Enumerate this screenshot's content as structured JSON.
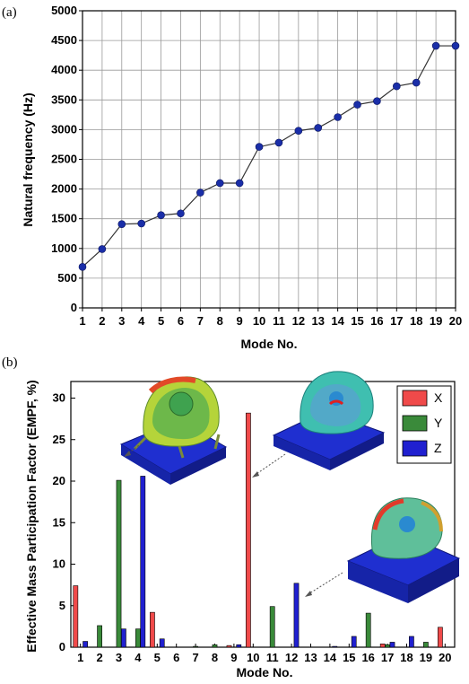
{
  "chart_data": [
    {
      "panel_label": "(a)",
      "type": "line",
      "x": [
        1,
        2,
        3,
        4,
        5,
        6,
        7,
        8,
        9,
        10,
        11,
        12,
        13,
        14,
        15,
        16,
        17,
        18,
        19,
        20
      ],
      "y": [
        690,
        990,
        1410,
        1420,
        1560,
        1590,
        1940,
        2100,
        2100,
        2710,
        2780,
        2980,
        3030,
        3210,
        3420,
        3480,
        3730,
        3790,
        4410,
        4410
      ],
      "xlabel": "Mode No.",
      "ylabel": "Natural frequency (Hz)",
      "xlim": [
        1,
        20
      ],
      "ylim": [
        0,
        5000
      ],
      "yticks": [
        0,
        500,
        1000,
        1500,
        2000,
        2500,
        3000,
        3500,
        4000,
        4500,
        5000
      ],
      "grid": true,
      "marker_color": "#1a2ea8"
    },
    {
      "panel_label": "(b)",
      "type": "bar",
      "categories": [
        "1",
        "2",
        "3",
        "4",
        "5",
        "6",
        "7",
        "8",
        "9",
        "10",
        "11",
        "12",
        "13",
        "14",
        "15",
        "16",
        "17",
        "18",
        "19",
        "20"
      ],
      "series": [
        {
          "name": "X",
          "color": "#f04a4a",
          "values": [
            7.4,
            0,
            0,
            0,
            4.2,
            0,
            0,
            0,
            0.2,
            28.2,
            0,
            0,
            0,
            0,
            0,
            0,
            0.4,
            0,
            0,
            2.4
          ]
        },
        {
          "name": "Y",
          "color": "#3a8a3a",
          "values": [
            0,
            2.6,
            20.1,
            2.2,
            0,
            0,
            0.1,
            0.3,
            0,
            0,
            4.9,
            0,
            0,
            0,
            0,
            4.1,
            0.3,
            0,
            0.6,
            0
          ]
        },
        {
          "name": "Z",
          "color": "#2020d0",
          "values": [
            0.7,
            0,
            2.2,
            20.6,
            1.0,
            0,
            0,
            0,
            0.3,
            0,
            0,
            7.7,
            0,
            0.1,
            1.3,
            0,
            0.6,
            1.3,
            0,
            0
          ]
        }
      ],
      "xlabel": "Mode No.",
      "ylabel": "Effective Mass Participation Factor (EMPF, %)",
      "ylim": [
        0,
        32
      ],
      "yticks": [
        0,
        5,
        10,
        15,
        20,
        25,
        30
      ],
      "legend_position": "top-right",
      "insets": [
        "mode-shape-3",
        "mode-shape-10",
        "mode-shape-16"
      ]
    }
  ]
}
